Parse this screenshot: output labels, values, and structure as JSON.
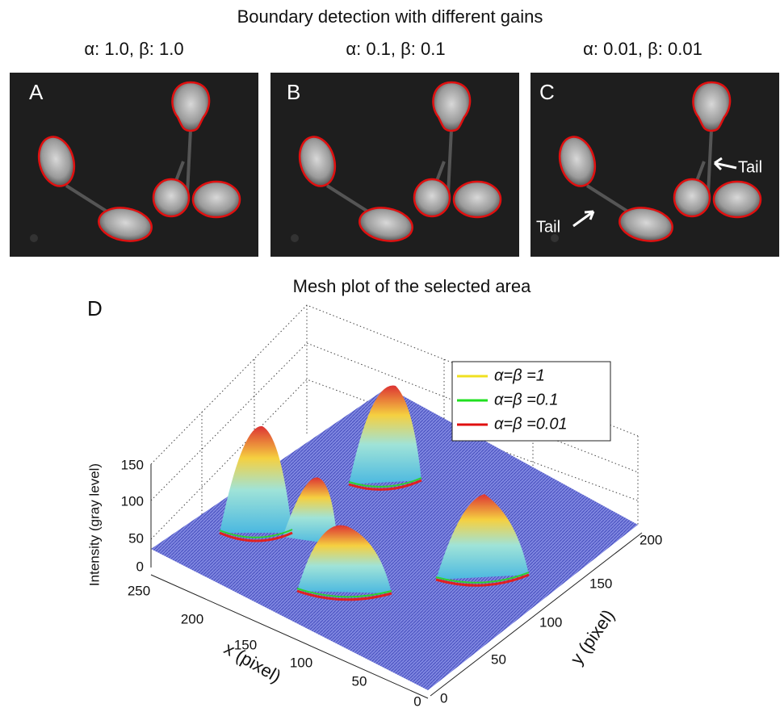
{
  "header": {
    "title": "Boundary detection with different gains"
  },
  "panels": [
    {
      "label": "A",
      "gain": "α: 1.0,   β: 1.0"
    },
    {
      "label": "B",
      "gain": "α: 0.1,   β: 0.1"
    },
    {
      "label": "C",
      "gain": "α: 0.01,   β: 0.01"
    }
  ],
  "annotations": [
    "Tail",
    "Tail"
  ],
  "mesh": {
    "label": "D",
    "title": "Mesh plot of the selected area",
    "z_axis": {
      "label": "Intensity (gray level)",
      "ticks": [
        "0",
        "50",
        "100",
        "150"
      ]
    },
    "x_axis": {
      "label": "x (pixel)",
      "ticks": [
        "250",
        "200",
        "150",
        "100",
        "50",
        "0"
      ]
    },
    "y_axis": {
      "label": "y (pixel)",
      "ticks": [
        "0",
        "50",
        "100",
        "150",
        "200"
      ]
    },
    "legend": [
      "α=β =1",
      "α=β =0.1",
      "α=β =0.01"
    ]
  }
}
